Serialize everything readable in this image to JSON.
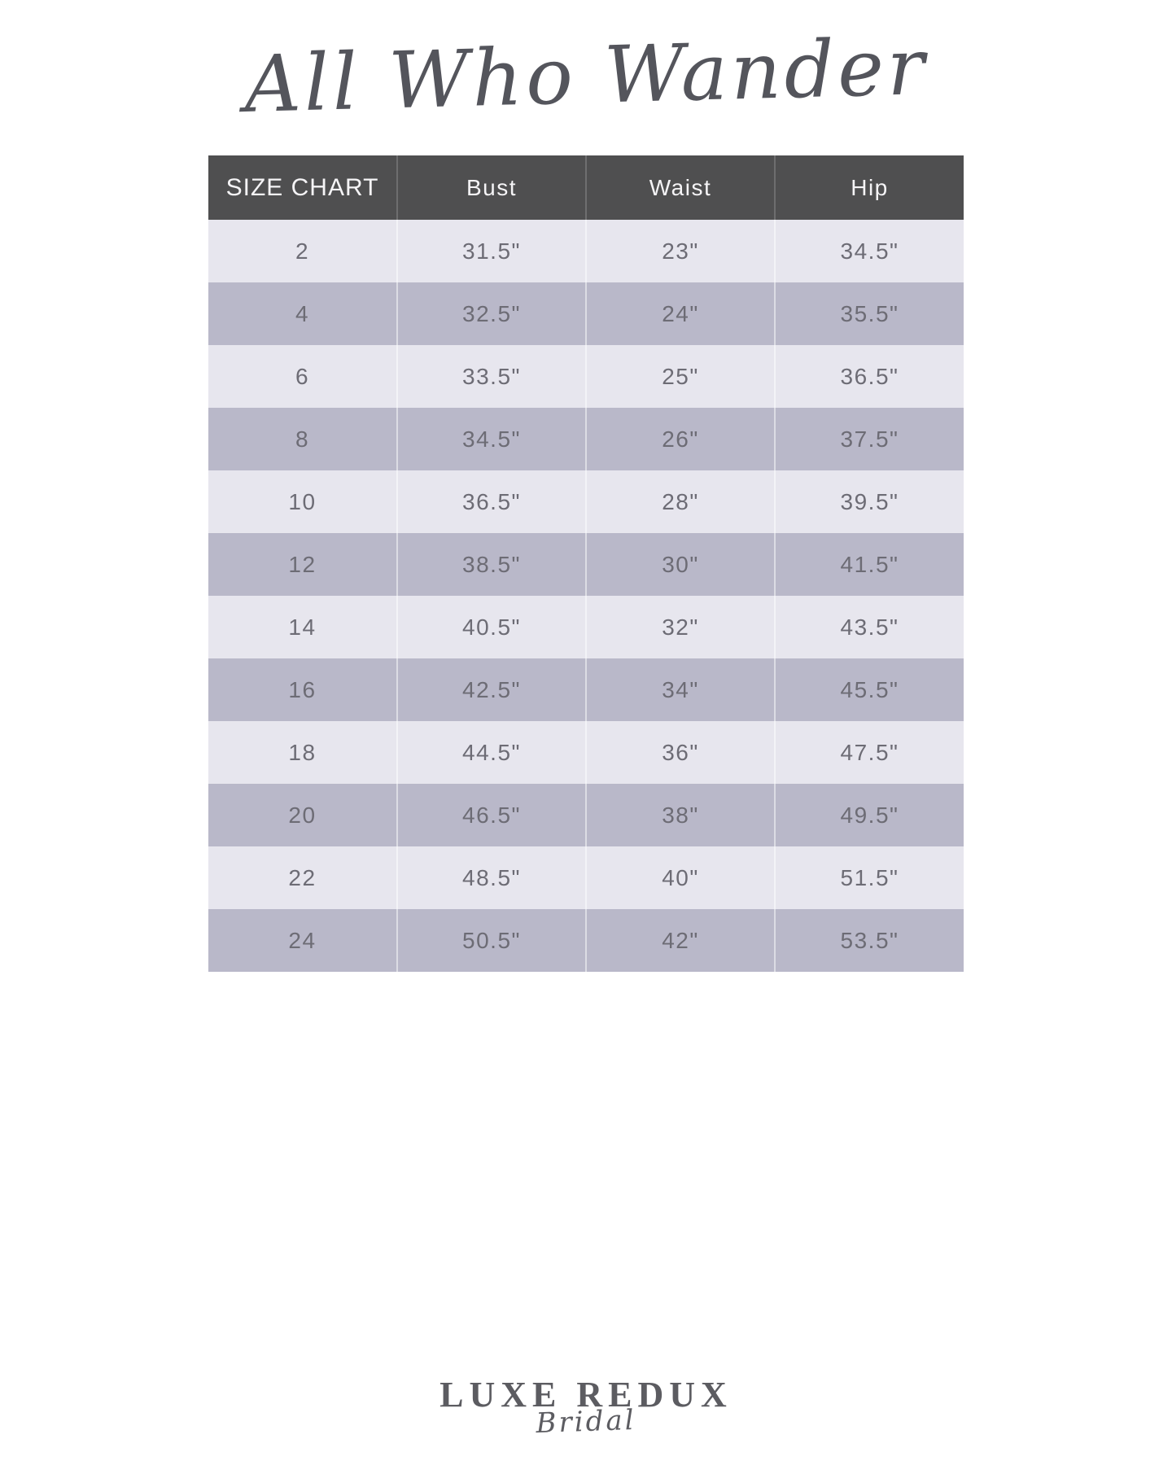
{
  "brand_logo": "All Who Wander",
  "table": {
    "headers": [
      "SIZE CHART",
      "Bust",
      "Waist",
      "Hip"
    ],
    "rows": [
      [
        "2",
        "31.5\"",
        "23\"",
        "34.5\""
      ],
      [
        "4",
        "32.5\"",
        "24\"",
        "35.5\""
      ],
      [
        "6",
        "33.5\"",
        "25\"",
        "36.5\""
      ],
      [
        "8",
        "34.5\"",
        "26\"",
        "37.5\""
      ],
      [
        "10",
        "36.5\"",
        "28\"",
        "39.5\""
      ],
      [
        "12",
        "38.5\"",
        "30\"",
        "41.5\""
      ],
      [
        "14",
        "40.5\"",
        "32\"",
        "43.5\""
      ],
      [
        "16",
        "42.5\"",
        "34\"",
        "45.5\""
      ],
      [
        "18",
        "44.5\"",
        "36\"",
        "47.5\""
      ],
      [
        "20",
        "46.5\"",
        "38\"",
        "49.5\""
      ],
      [
        "22",
        "48.5\"",
        "40\"",
        "51.5\""
      ],
      [
        "24",
        "50.5\"",
        "42\"",
        "53.5\""
      ]
    ]
  },
  "chart_data": {
    "type": "table",
    "title": "All Who Wander Size Chart",
    "columns": [
      "Size",
      "Bust",
      "Waist",
      "Hip"
    ],
    "rows": [
      {
        "size": "2",
        "bust": "31.5\"",
        "waist": "23\"",
        "hip": "34.5\""
      },
      {
        "size": "4",
        "bust": "32.5\"",
        "waist": "24\"",
        "hip": "35.5\""
      },
      {
        "size": "6",
        "bust": "33.5\"",
        "waist": "25\"",
        "hip": "36.5\""
      },
      {
        "size": "8",
        "bust": "34.5\"",
        "waist": "26\"",
        "hip": "37.5\""
      },
      {
        "size": "10",
        "bust": "36.5\"",
        "waist": "28\"",
        "hip": "39.5\""
      },
      {
        "size": "12",
        "bust": "38.5\"",
        "waist": "30\"",
        "hip": "41.5\""
      },
      {
        "size": "14",
        "bust": "40.5\"",
        "waist": "32\"",
        "hip": "43.5\""
      },
      {
        "size": "16",
        "bust": "42.5\"",
        "waist": "34\"",
        "hip": "45.5\""
      },
      {
        "size": "18",
        "bust": "44.5\"",
        "waist": "36\"",
        "hip": "47.5\""
      },
      {
        "size": "20",
        "bust": "46.5\"",
        "waist": "38\"",
        "hip": "49.5\""
      },
      {
        "size": "22",
        "bust": "48.5\"",
        "waist": "40\"",
        "hip": "51.5\""
      },
      {
        "size": "24",
        "bust": "50.5\"",
        "waist": "42\"",
        "hip": "53.5\""
      }
    ]
  },
  "footer_logo": {
    "primary": "LUXE REDUX",
    "script": "Bridal"
  },
  "colors": {
    "header_bg": "#4f4f50",
    "header_text": "#f5f4f6",
    "row_light": "#e7e6ee",
    "row_dark": "#b9b8c9",
    "cell_text": "#6d6c75",
    "brand_logo_text": "#54555c",
    "footer_text": "#5c5c61"
  }
}
